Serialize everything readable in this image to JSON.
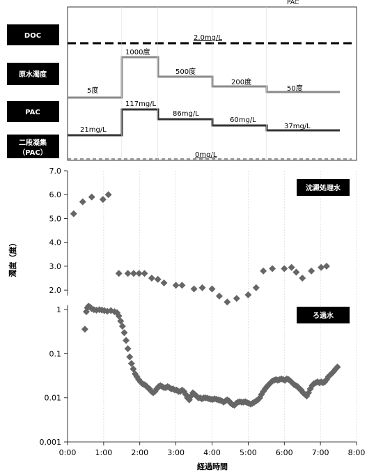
{
  "title_fragment": "PAC",
  "schedule_panel": {
    "row_labels": [
      "DOC",
      "原水濁度",
      "PAC",
      "二段凝集",
      "（PAC）"
    ],
    "doc_label": "2.0mg/L",
    "turbidity_labels": [
      "5度",
      "1000度",
      "500度",
      "200度",
      "50度"
    ],
    "pac_labels": [
      "21mg/L",
      "117mg/L",
      "86mg/L",
      "60mg/L",
      "37mg/L"
    ],
    "second_pac_label": "0mg/L"
  },
  "chart_data": {
    "type": "scatter",
    "xlabel": "経過時間",
    "ylabel": "濁度（度）",
    "x_ticks": [
      "0:00",
      "1:00",
      "2:00",
      "3:00",
      "4:00",
      "5:00",
      "6:00",
      "7:00",
      "8:00"
    ],
    "xlim_hours": [
      0,
      8
    ],
    "upper_panel": {
      "name": "沈澱処理水",
      "y_ticks": [
        "2.0",
        "3.0",
        "4.0",
        "5.0",
        "6.0",
        "7.0"
      ],
      "ylim": [
        1.8,
        7.0
      ],
      "scale": "linear",
      "points": [
        [
          0.17,
          5.2
        ],
        [
          0.42,
          5.7
        ],
        [
          0.67,
          5.9
        ],
        [
          0.98,
          5.8
        ],
        [
          1.13,
          6.0
        ],
        [
          1.42,
          2.7
        ],
        [
          1.67,
          2.7
        ],
        [
          1.83,
          2.7
        ],
        [
          1.98,
          2.7
        ],
        [
          2.13,
          2.7
        ],
        [
          2.33,
          2.5
        ],
        [
          2.5,
          2.45
        ],
        [
          2.67,
          2.3
        ],
        [
          3.0,
          2.2
        ],
        [
          3.17,
          2.2
        ],
        [
          3.5,
          2.05
        ],
        [
          3.73,
          2.1
        ],
        [
          4.0,
          2.05
        ],
        [
          4.2,
          1.75
        ],
        [
          4.42,
          1.5
        ],
        [
          4.68,
          1.65
        ],
        [
          5.0,
          1.8
        ],
        [
          5.22,
          2.1
        ],
        [
          5.42,
          2.8
        ],
        [
          5.67,
          2.9
        ],
        [
          6.0,
          2.9
        ],
        [
          6.2,
          2.95
        ],
        [
          6.33,
          2.75
        ],
        [
          6.5,
          2.5
        ],
        [
          6.75,
          2.8
        ],
        [
          7.02,
          2.95
        ],
        [
          7.17,
          3.0
        ]
      ]
    },
    "lower_panel": {
      "name": "ろ過水",
      "y_ticks": [
        "0.001",
        "0.01",
        "0.1",
        "1"
      ],
      "ylim": [
        0.001,
        1.3
      ],
      "scale": "log",
      "points": [
        [
          0.48,
          0.36
        ],
        [
          0.52,
          0.9
        ],
        [
          0.55,
          1.1
        ],
        [
          0.58,
          1.2
        ],
        [
          0.62,
          1.15
        ],
        [
          0.67,
          1.05
        ],
        [
          0.73,
          1.0
        ],
        [
          0.8,
          0.97
        ],
        [
          0.88,
          1.0
        ],
        [
          0.95,
          0.98
        ],
        [
          1.02,
          0.95
        ],
        [
          1.1,
          0.92
        ],
        [
          1.2,
          0.95
        ],
        [
          1.3,
          0.9
        ],
        [
          1.37,
          0.85
        ],
        [
          1.42,
          0.72
        ],
        [
          1.47,
          0.55
        ],
        [
          1.52,
          0.42
        ],
        [
          1.57,
          0.3
        ],
        [
          1.62,
          0.2
        ],
        [
          1.67,
          0.13
        ],
        [
          1.72,
          0.085
        ],
        [
          1.77,
          0.06
        ],
        [
          1.82,
          0.045
        ],
        [
          1.87,
          0.035
        ],
        [
          1.92,
          0.03
        ],
        [
          1.97,
          0.026
        ],
        [
          2.02,
          0.023
        ],
        [
          2.07,
          0.021
        ],
        [
          2.12,
          0.02
        ],
        [
          2.17,
          0.019
        ],
        [
          2.22,
          0.017
        ],
        [
          2.27,
          0.016
        ],
        [
          2.32,
          0.014
        ],
        [
          2.37,
          0.013
        ],
        [
          2.42,
          0.014
        ],
        [
          2.47,
          0.016
        ],
        [
          2.52,
          0.018
        ],
        [
          2.57,
          0.019
        ],
        [
          2.62,
          0.018
        ],
        [
          2.67,
          0.017
        ],
        [
          2.72,
          0.017
        ],
        [
          2.77,
          0.018
        ],
        [
          2.82,
          0.017
        ],
        [
          2.87,
          0.016
        ],
        [
          2.92,
          0.016
        ],
        [
          2.97,
          0.015
        ],
        [
          3.02,
          0.015
        ],
        [
          3.07,
          0.014
        ],
        [
          3.12,
          0.014
        ],
        [
          3.17,
          0.015
        ],
        [
          3.22,
          0.014
        ],
        [
          3.27,
          0.012
        ],
        [
          3.32,
          0.01
        ],
        [
          3.37,
          0.009
        ],
        [
          3.42,
          0.011
        ],
        [
          3.47,
          0.013
        ],
        [
          3.52,
          0.012
        ],
        [
          3.57,
          0.011
        ],
        [
          3.62,
          0.01
        ],
        [
          3.67,
          0.01
        ],
        [
          3.72,
          0.0095
        ],
        [
          3.77,
          0.01
        ],
        [
          3.82,
          0.01
        ],
        [
          3.87,
          0.0098
        ],
        [
          3.92,
          0.0095
        ],
        [
          3.97,
          0.0093
        ],
        [
          4.02,
          0.0092
        ],
        [
          4.07,
          0.0095
        ],
        [
          4.12,
          0.0093
        ],
        [
          4.17,
          0.009
        ],
        [
          4.22,
          0.0088
        ],
        [
          4.27,
          0.0085
        ],
        [
          4.32,
          0.008
        ],
        [
          4.37,
          0.0085
        ],
        [
          4.42,
          0.009
        ],
        [
          4.47,
          0.0085
        ],
        [
          4.52,
          0.0075
        ],
        [
          4.57,
          0.007
        ],
        [
          4.62,
          0.0068
        ],
        [
          4.67,
          0.0075
        ],
        [
          4.72,
          0.008
        ],
        [
          4.77,
          0.0082
        ],
        [
          4.82,
          0.008
        ],
        [
          4.87,
          0.008
        ],
        [
          4.92,
          0.0082
        ],
        [
          4.97,
          0.0078
        ],
        [
          5.02,
          0.0075
        ],
        [
          5.07,
          0.0072
        ],
        [
          5.12,
          0.0075
        ],
        [
          5.17,
          0.008
        ],
        [
          5.22,
          0.0085
        ],
        [
          5.27,
          0.009
        ],
        [
          5.32,
          0.01
        ],
        [
          5.37,
          0.012
        ],
        [
          5.42,
          0.014
        ],
        [
          5.47,
          0.016
        ],
        [
          5.52,
          0.018
        ],
        [
          5.57,
          0.02
        ],
        [
          5.62,
          0.022
        ],
        [
          5.67,
          0.024
        ],
        [
          5.72,
          0.025
        ],
        [
          5.77,
          0.026
        ],
        [
          5.82,
          0.025
        ],
        [
          5.87,
          0.026
        ],
        [
          5.92,
          0.027
        ],
        [
          5.97,
          0.026
        ],
        [
          6.02,
          0.025
        ],
        [
          6.07,
          0.027
        ],
        [
          6.12,
          0.026
        ],
        [
          6.17,
          0.024
        ],
        [
          6.22,
          0.022
        ],
        [
          6.27,
          0.02
        ],
        [
          6.32,
          0.019
        ],
        [
          6.37,
          0.018
        ],
        [
          6.42,
          0.016
        ],
        [
          6.47,
          0.015
        ],
        [
          6.52,
          0.013
        ],
        [
          6.57,
          0.012
        ],
        [
          6.62,
          0.011
        ],
        [
          6.67,
          0.013
        ],
        [
          6.72,
          0.016
        ],
        [
          6.77,
          0.019
        ],
        [
          6.82,
          0.021
        ],
        [
          6.87,
          0.022
        ],
        [
          6.92,
          0.023
        ],
        [
          6.97,
          0.022
        ],
        [
          7.02,
          0.023
        ],
        [
          7.07,
          0.022
        ],
        [
          7.12,
          0.023
        ],
        [
          7.17,
          0.026
        ],
        [
          7.22,
          0.03
        ],
        [
          7.27,
          0.033
        ],
        [
          7.32,
          0.036
        ],
        [
          7.37,
          0.04
        ],
        [
          7.42,
          0.045
        ],
        [
          7.47,
          0.05
        ]
      ]
    },
    "marker_color": "#666666",
    "gridlines": "vertical-dashed"
  }
}
